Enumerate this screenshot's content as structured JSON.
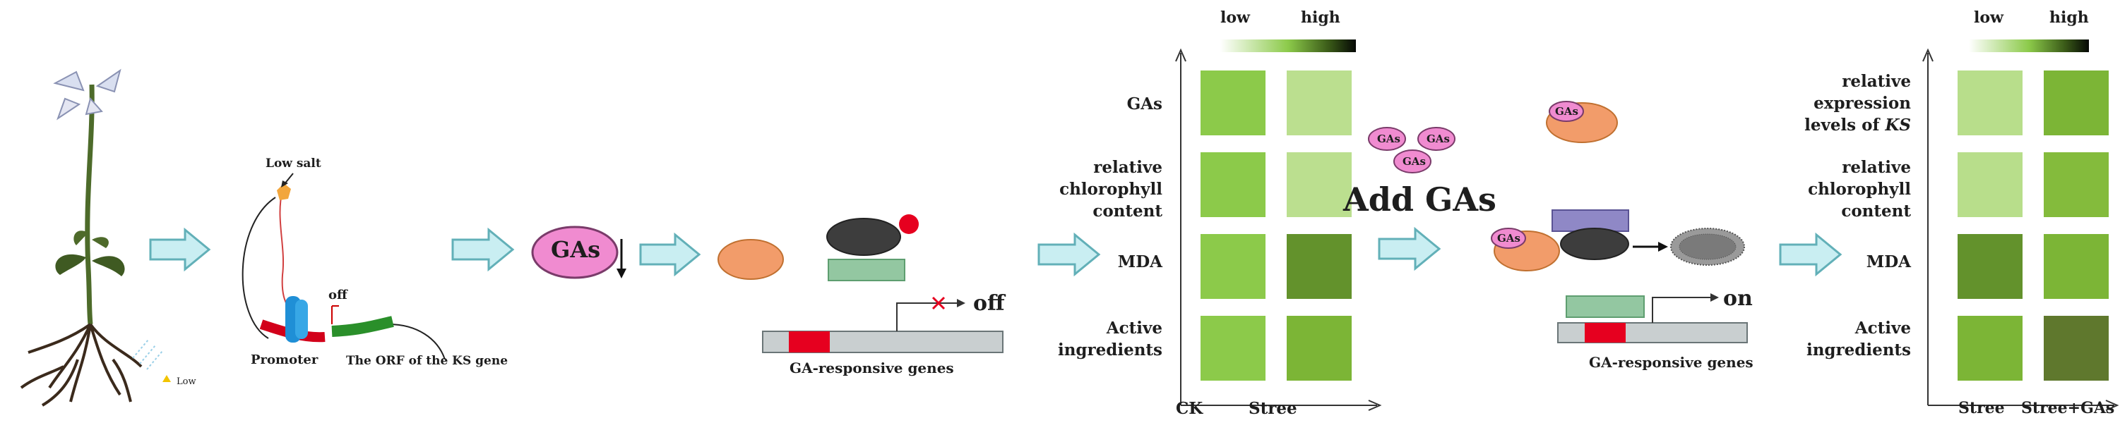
{
  "panel1": {
    "stress_label": "Low salt",
    "switch_label": "off",
    "promoter_label": "Promoter",
    "orf_label": "The ORF of the KS gene",
    "soil_label": "Low"
  },
  "panel2": {
    "gas_label": "GAs",
    "switch_label": "off",
    "genes_label": "GA-responsive genes"
  },
  "heatmap1": {
    "legend_low": "low",
    "legend_high": "high",
    "rows": [
      "GAs",
      "relative chlorophyll content",
      "MDA",
      "Active ingredients"
    ],
    "row_lines": [
      [
        "GAs"
      ],
      [
        "relative",
        "chlorophyll",
        "content"
      ],
      [
        "MDA"
      ],
      [
        "Active",
        "ingredients"
      ]
    ],
    "columns": [
      "CK",
      "Stree"
    ],
    "cells": [
      [
        "#8cca4a",
        "#bbdf8f"
      ],
      [
        "#8cca4a",
        "#bbdf8f"
      ],
      [
        "#8cca4a",
        "#63922c"
      ],
      [
        "#8cca4a",
        "#7cb536"
      ]
    ]
  },
  "panel3": {
    "add_label": "Add GAs",
    "gas_label": "GAs",
    "switch_label": "on",
    "genes_label": "GA-responsive genes"
  },
  "heatmap2": {
    "legend_low": "low",
    "legend_high": "high",
    "rows": [
      "relative expression levels of KS",
      "relative chlorophyll content",
      "MDA",
      "Active ingredients"
    ],
    "row_lines": [
      [
        "relative",
        "expression",
        "levels of KS"
      ],
      [
        "relative",
        "chlorophyll",
        "content"
      ],
      [
        "MDA"
      ],
      [
        "Active",
        "ingredients"
      ]
    ],
    "columns": [
      "Stree",
      "Stree+GAs"
    ],
    "cells": [
      [
        "#b8de8b",
        "#7cb536"
      ],
      [
        "#b8de8b",
        "#84bb3c"
      ],
      [
        "#63922c",
        "#7cb536"
      ],
      [
        "#7cb536",
        "#5f782d"
      ]
    ]
  },
  "colors": {
    "arrow_fill": "#c9eef2",
    "arrow_stroke": "#62b0b8",
    "gas_fill": "#f08bd0",
    "receptor_fill": "#f29c6a",
    "repressor_fill": "#3d3d3d",
    "red": "#e6001f",
    "green_box": "#93c7a1",
    "purple_box": "#8f88c6",
    "dna_fill": "#c9cfd0"
  }
}
